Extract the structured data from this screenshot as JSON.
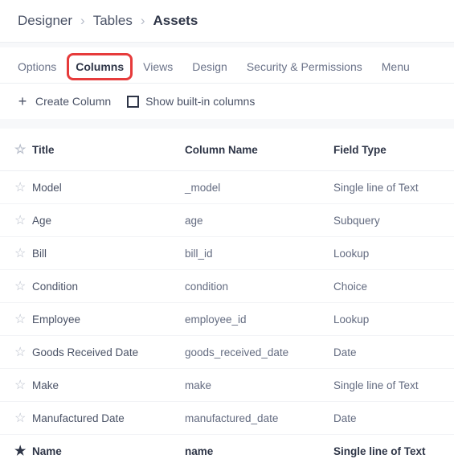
{
  "breadcrumb": {
    "root": "Designer",
    "mid": "Tables",
    "current": "Assets"
  },
  "tabs": {
    "options": "Options",
    "columns": "Columns",
    "views": "Views",
    "design": "Design",
    "security": "Security & Permissions",
    "menu": "Menu"
  },
  "toolbar": {
    "create_column": "Create Column",
    "show_builtin": "Show built-in columns"
  },
  "table": {
    "headers": {
      "title": "Title",
      "column_name": "Column Name",
      "field_type": "Field Type"
    },
    "rows": [
      {
        "starred": false,
        "bold": false,
        "title": "Model",
        "name": "_model",
        "type": "Single line of Text"
      },
      {
        "starred": false,
        "bold": false,
        "title": "Age",
        "name": "age",
        "type": "Subquery"
      },
      {
        "starred": false,
        "bold": false,
        "title": "Bill",
        "name": "bill_id",
        "type": "Lookup"
      },
      {
        "starred": false,
        "bold": false,
        "title": "Condition",
        "name": "condition",
        "type": "Choice"
      },
      {
        "starred": false,
        "bold": false,
        "title": "Employee",
        "name": "employee_id",
        "type": "Lookup"
      },
      {
        "starred": false,
        "bold": false,
        "title": "Goods Received Date",
        "name": "goods_received_date",
        "type": "Date"
      },
      {
        "starred": false,
        "bold": false,
        "title": "Make",
        "name": "make",
        "type": "Single line of Text"
      },
      {
        "starred": false,
        "bold": false,
        "title": "Manufactured Date",
        "name": "manufactured_date",
        "type": "Date"
      },
      {
        "starred": true,
        "bold": true,
        "title": "Name",
        "name": "name",
        "type": "Single line of Text"
      }
    ]
  }
}
